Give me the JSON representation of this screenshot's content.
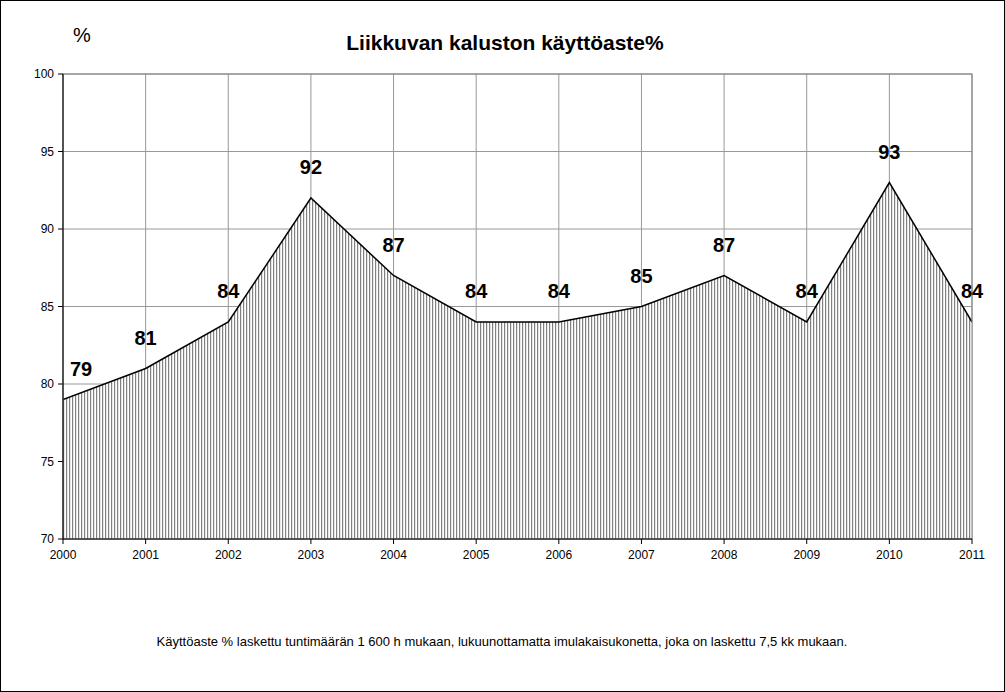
{
  "chart_data": {
    "type": "area",
    "title": "Liikkuvan kaluston käyttöaste%",
    "y_label": "%",
    "annotations": [
      "Käyttöaste % laskettu tuntimäärän 1 600 h mukaan, lukuunottamatta imulakaisukonetta, joka on laskettu 7,5 kk mukaan."
    ],
    "categories": [
      "2000",
      "2001",
      "2002",
      "2003",
      "2004",
      "2005",
      "2006",
      "2007",
      "2008",
      "2009",
      "2010",
      "2011"
    ],
    "values": [
      79,
      81,
      84,
      92,
      87,
      84,
      84,
      85,
      87,
      84,
      93,
      84
    ],
    "color": "#808080",
    "ylim": [
      70,
      100
    ],
    "yticks": [
      70,
      75,
      80,
      85,
      90,
      95,
      100
    ],
    "grid": true,
    "data_labels": true
  }
}
